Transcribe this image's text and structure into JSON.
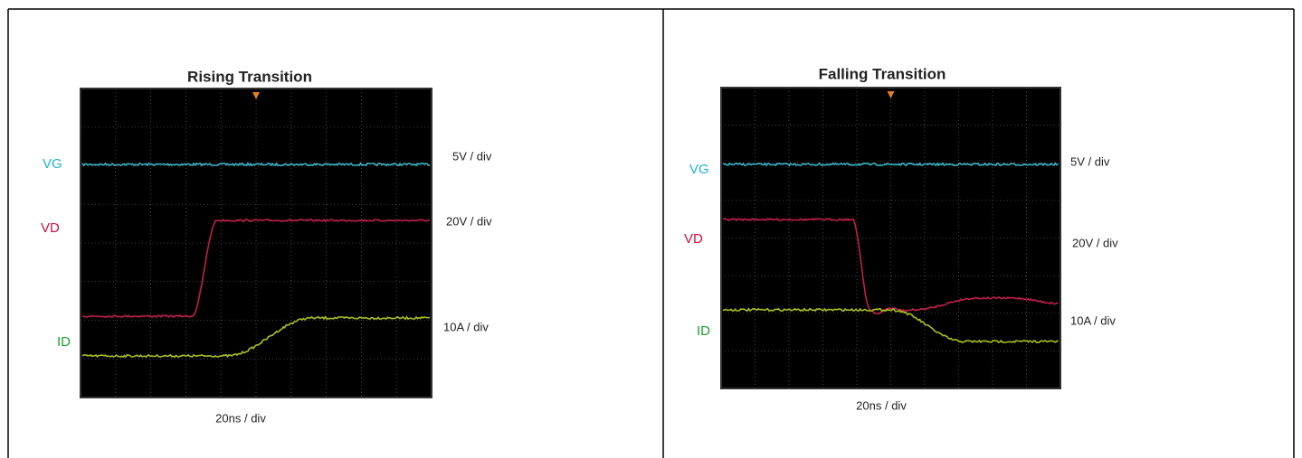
{
  "panels": [
    {
      "title": "Rising Transition",
      "signals": [
        "VG",
        "VD",
        "ID"
      ],
      "scales": [
        "5V / div",
        "20V / div",
        "10A / div"
      ],
      "timebase": "20ns / div"
    },
    {
      "title": "Falling Transition",
      "signals": [
        "VG",
        "VD",
        "ID"
      ],
      "scales": [
        "5V / div",
        "20V / div",
        "10A / div"
      ],
      "timebase": "20ns / div"
    }
  ]
}
